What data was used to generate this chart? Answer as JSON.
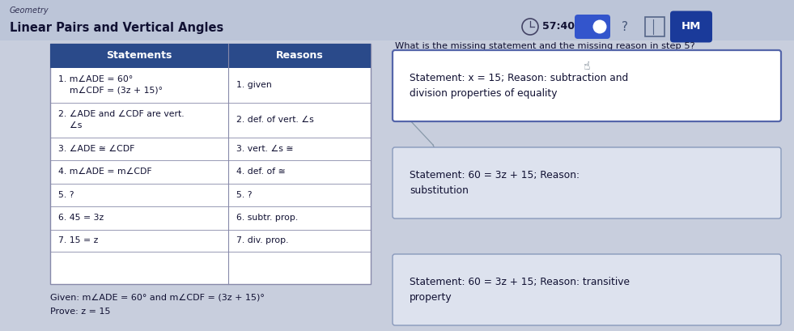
{
  "title_small": "Geometry",
  "title_large": "Linear Pairs and Vertical Angles",
  "timer": "57:40",
  "hm_label": "HM",
  "question": "What is the missing statement and the missing reason in step 5?",
  "table_header": [
    "Statements",
    "Reasons"
  ],
  "table_rows": [
    [
      "1. m∠ADE = 60°\n    m∠CDF = (3z + 15)°",
      "1. given"
    ],
    [
      "2. ∠ADE and ∠CDF are vert.\n    ∠s",
      "2. def. of vert. ∠s"
    ],
    [
      "3. ∠ADE ≅ ∠CDF",
      "3. vert. ∠s ≅"
    ],
    [
      "4. m∠ADE = m∠CDF",
      "4. def. of ≅"
    ],
    [
      "5. ?",
      "5. ?"
    ],
    [
      "6. 45 = 3z",
      "6. subtr. prop."
    ],
    [
      "7. 15 = z",
      "7. div. prop."
    ]
  ],
  "given_text": "Given: m∠ADE = 60° and m∠CDF = (3z + 15)°",
  "prove_text": "Prove: z = 15",
  "answer_boxes": [
    {
      "text": "Statement: x = 15; Reason: subtraction and\ndivision properties of equality",
      "selected": true,
      "has_cursor": true
    },
    {
      "text": "Statement: 60 = 3z + 15; Reason:\nsubstitution",
      "selected": false,
      "has_cursor": false
    },
    {
      "text": "Statement: 60 = 3z + 15; Reason: transitive\nproperty",
      "selected": false,
      "has_cursor": false
    }
  ],
  "header_bg": "#2a4a8a",
  "header_fg": "#ffffff",
  "bg_color": "#c8cedd",
  "table_bg": "#ffffff",
  "table_border": "#888aaa",
  "box_border_selected": "#5566aa",
  "box_border_unselected": "#8899bb",
  "box_bg_selected": "#ffffff",
  "box_bg_unselected": "#dde2ee",
  "top_bar_bg": "#bcc5d8",
  "timer_circle_bg": "#555577",
  "toggle_circle_bg": "#3344aa",
  "hm_bg": "#1a3a9a"
}
